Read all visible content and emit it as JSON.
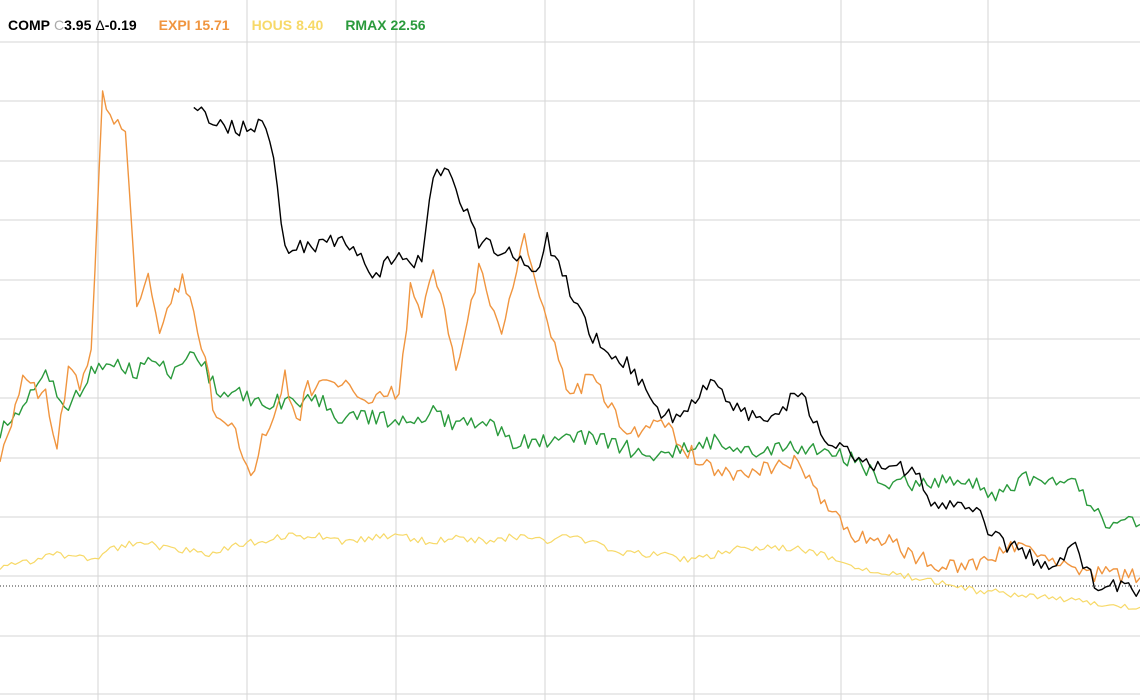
{
  "legend": {
    "comp": {
      "symbol": "COMP",
      "close_prefix": "C",
      "close": "3.95",
      "delta_prefix": "Δ",
      "delta": "-0.19"
    },
    "expi": {
      "symbol": "EXPI",
      "value": "15.71"
    },
    "hous": {
      "symbol": "HOUS",
      "value": "8.40"
    },
    "rmax": {
      "symbol": "RMAX",
      "value": "22.56"
    }
  },
  "colors": {
    "comp": "#000000",
    "expi": "#f0953f",
    "hous": "#f7d968",
    "rmax": "#2a9a3c",
    "grid": "#d6d6d6",
    "baseline": "#333333"
  },
  "chart_data": {
    "type": "line",
    "grid": true,
    "ylim": [
      0,
      11
    ],
    "baseline_value": 2.0,
    "vertical_gridlines": 7,
    "horizontal_gridlines": 10,
    "series": [
      {
        "name": "COMP",
        "color": "#000000",
        "x": [
          0.17,
          0.18,
          0.19,
          0.21,
          0.23,
          0.24,
          0.25,
          0.26,
          0.3,
          0.32,
          0.33,
          0.35,
          0.36,
          0.37,
          0.38,
          0.39,
          0.42,
          0.45,
          0.47,
          0.48,
          0.52,
          0.55,
          0.58,
          0.6,
          0.62,
          0.65,
          0.68,
          0.7,
          0.72,
          0.75,
          0.78,
          0.8,
          0.82,
          0.85,
          0.87,
          0.89,
          0.9,
          0.92,
          0.94,
          0.96,
          1.0
        ],
        "values": [
          10.0,
          9.7,
          9.6,
          9.5,
          9.6,
          9.0,
          7.4,
          7.5,
          7.6,
          7.3,
          7.0,
          7.5,
          7.2,
          7.3,
          8.7,
          8.9,
          7.6,
          7.4,
          7.0,
          7.6,
          6.0,
          5.5,
          4.7,
          4.6,
          5.2,
          4.7,
          4.6,
          5.1,
          4.3,
          4.0,
          3.7,
          3.8,
          3.1,
          3.2,
          2.6,
          2.4,
          2.3,
          2.0,
          2.5,
          1.8,
          1.7
        ]
      },
      {
        "name": "EXPI",
        "color": "#f0953f",
        "x": [
          0.0,
          0.02,
          0.04,
          0.05,
          0.06,
          0.07,
          0.08,
          0.09,
          0.1,
          0.11,
          0.12,
          0.13,
          0.14,
          0.15,
          0.16,
          0.17,
          0.18,
          0.19,
          0.2,
          0.21,
          0.22,
          0.23,
          0.24,
          0.25,
          0.26,
          0.27,
          0.3,
          0.32,
          0.34,
          0.35,
          0.36,
          0.37,
          0.38,
          0.4,
          0.42,
          0.44,
          0.46,
          0.47,
          0.5,
          0.52,
          0.55,
          0.58,
          0.6,
          0.62,
          0.65,
          0.68,
          0.7,
          0.72,
          0.75,
          0.78,
          0.82,
          0.85,
          0.9,
          0.94,
          1.0
        ],
        "values": [
          4.0,
          5.2,
          5.0,
          4.1,
          5.4,
          5.1,
          5.8,
          10.0,
          9.7,
          9.5,
          6.5,
          7.0,
          6.0,
          6.5,
          7.0,
          6.4,
          5.6,
          4.5,
          4.6,
          4.2,
          3.5,
          4.2,
          4.6,
          5.3,
          4.5,
          5.1,
          5.2,
          4.8,
          5.0,
          5.0,
          6.8,
          6.3,
          7.2,
          5.5,
          7.1,
          6.0,
          7.6,
          7.0,
          5.0,
          5.3,
          4.3,
          4.6,
          4.1,
          3.8,
          3.6,
          3.8,
          3.9,
          3.2,
          2.6,
          2.5,
          2.1,
          2.1,
          2.5,
          2.0,
          1.9
        ]
      },
      {
        "name": "HOUS",
        "color": "#f7d968",
        "x": [
          0.0,
          0.03,
          0.05,
          0.08,
          0.1,
          0.12,
          0.15,
          0.18,
          0.2,
          0.22,
          0.25,
          0.28,
          0.3,
          0.33,
          0.35,
          0.38,
          0.4,
          0.43,
          0.45,
          0.48,
          0.5,
          0.52,
          0.55,
          0.58,
          0.6,
          0.63,
          0.65,
          0.7,
          0.72,
          0.75,
          0.8,
          0.83,
          0.85,
          0.9,
          0.95,
          1.0
        ],
        "values": [
          2.1,
          2.2,
          2.3,
          2.2,
          2.4,
          2.5,
          2.4,
          2.3,
          2.4,
          2.5,
          2.6,
          2.6,
          2.5,
          2.6,
          2.6,
          2.5,
          2.6,
          2.5,
          2.6,
          2.5,
          2.6,
          2.5,
          2.3,
          2.3,
          2.2,
          2.3,
          2.4,
          2.4,
          2.3,
          2.1,
          1.9,
          1.8,
          1.7,
          1.6,
          1.5,
          1.4
        ]
      },
      {
        "name": "RMAX",
        "color": "#2a9a3c",
        "x": [
          0.0,
          0.02,
          0.04,
          0.06,
          0.08,
          0.1,
          0.12,
          0.14,
          0.15,
          0.17,
          0.19,
          0.21,
          0.23,
          0.25,
          0.28,
          0.3,
          0.33,
          0.36,
          0.38,
          0.4,
          0.43,
          0.45,
          0.5,
          0.52,
          0.55,
          0.58,
          0.6,
          0.63,
          0.65,
          0.7,
          0.72,
          0.75,
          0.78,
          0.8,
          0.85,
          0.87,
          0.9,
          0.94,
          0.97,
          1.0
        ],
        "values": [
          4.4,
          4.8,
          5.4,
          4.8,
          5.4,
          5.5,
          5.4,
          5.6,
          5.3,
          5.8,
          5.1,
          5.0,
          4.8,
          4.9,
          4.9,
          4.6,
          4.6,
          4.5,
          4.7,
          4.5,
          4.5,
          4.2,
          4.2,
          4.3,
          4.1,
          3.9,
          4.1,
          4.2,
          4.0,
          4.1,
          4.0,
          3.9,
          3.5,
          3.5,
          3.6,
          3.3,
          3.6,
          3.6,
          2.8,
          2.8
        ]
      }
    ]
  }
}
